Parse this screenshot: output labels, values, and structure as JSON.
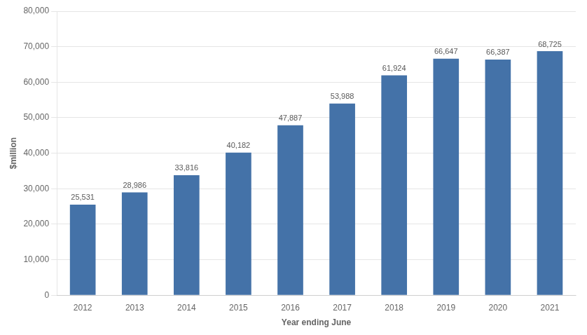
{
  "chart_data": {
    "type": "bar",
    "categories": [
      "2012",
      "2013",
      "2014",
      "2015",
      "2016",
      "2017",
      "2018",
      "2019",
      "2020",
      "2021"
    ],
    "values": [
      25531,
      28986,
      33816,
      40182,
      47887,
      53988,
      61924,
      66647,
      66387,
      68725
    ],
    "value_labels": [
      "25,531",
      "28,986",
      "33,816",
      "40,182",
      "47,887",
      "53,988",
      "61,924",
      "66,647",
      "66,387",
      "68,725"
    ],
    "color": "#4472a8",
    "xlabel": "Year ending June",
    "ylabel": "$million",
    "ylim": [
      0,
      80000
    ],
    "yticks": [
      0,
      {
        "value": 10000,
        "label": "10,000"
      },
      {
        "value": 20000,
        "label": "20,000"
      },
      {
        "value": 30000,
        "label": "30,000"
      },
      {
        "value": 40000,
        "label": "40,000"
      },
      {
        "value": 50000,
        "label": "50,000"
      },
      {
        "value": 60000,
        "label": "60,000"
      },
      {
        "value": 70000,
        "label": "70,000"
      },
      {
        "value": 80000,
        "label": "80,000"
      }
    ],
    "grid": true,
    "data_labels": true
  }
}
